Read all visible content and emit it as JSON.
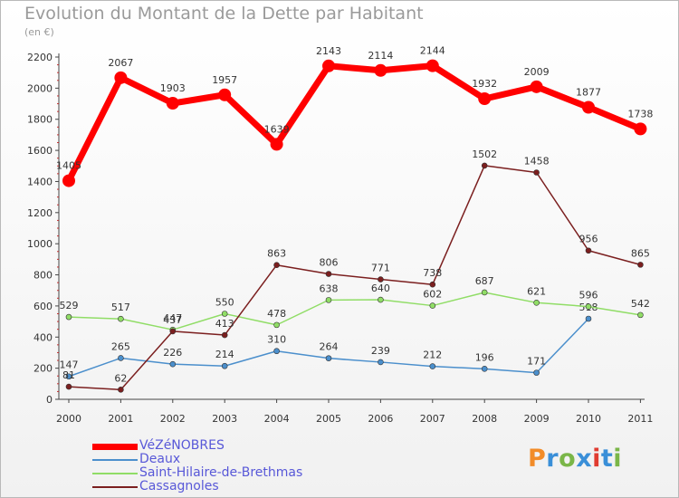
{
  "title": "Evolution du Montant de la Dette par Habitant",
  "subtitle": "(en €)",
  "logo": {
    "text": "Proxiti",
    "colors": [
      "#f28c28",
      "#3a8fd8",
      "#7ab648",
      "#3a8fd8",
      "#e03c31",
      "#3a8fd8",
      "#7ab648"
    ]
  },
  "chart_data": {
    "type": "line",
    "x": [
      "2000",
      "2001",
      "2002",
      "2003",
      "2004",
      "2005",
      "2006",
      "2007",
      "2008",
      "2009",
      "2010",
      "2011"
    ],
    "ylim": [
      0,
      2200
    ],
    "yticks": [
      "0",
      "200",
      "400",
      "600",
      "800",
      "1000",
      "1200",
      "1400",
      "1600",
      "1800",
      "2000",
      "2200"
    ],
    "grid": false,
    "legend_position": "bottom-left",
    "series": [
      {
        "name": "VéZéNOBRES",
        "color": "#ff0000",
        "values": [
          1405,
          2067,
          1903,
          1957,
          1639,
          2143,
          2114,
          2144,
          1932,
          2009,
          1877,
          1738
        ]
      },
      {
        "name": "Deaux",
        "color": "#4b8fcc",
        "values": [
          147,
          265,
          226,
          214,
          310,
          264,
          239,
          212,
          196,
          171,
          518,
          null
        ]
      },
      {
        "name": "Saint-Hilaire-de-Brethmas",
        "color": "#90dd66",
        "values": [
          529,
          517,
          447,
          550,
          478,
          638,
          640,
          602,
          687,
          621,
          596,
          542
        ]
      },
      {
        "name": "Cassagnoles",
        "color": "#7b1f1f",
        "values": [
          81,
          62,
          437,
          413,
          863,
          806,
          771,
          738,
          1502,
          1458,
          956,
          865
        ]
      }
    ]
  }
}
